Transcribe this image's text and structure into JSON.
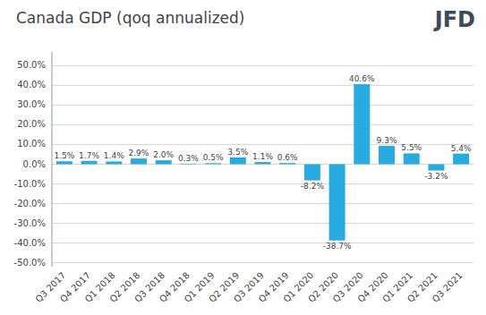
{
  "chart_data": {
    "type": "bar",
    "title": "Canada GDP (qoq annualized)",
    "annotations": [
      "JFD"
    ],
    "categories": [
      "Q3 2017",
      "Q4 2017",
      "Q1 2018",
      "Q2 2018",
      "Q3 2018",
      "Q4 2018",
      "Q1 2019",
      "Q2 2019",
      "Q3 2019",
      "Q4 2019",
      "Q1 2020",
      "Q2 2020",
      "Q3 2020",
      "Q4 2020",
      "Q1 2021",
      "Q2 2021",
      "Q3 2021"
    ],
    "values": [
      1.5,
      1.7,
      1.4,
      2.9,
      2.0,
      0.3,
      0.5,
      3.5,
      1.1,
      0.6,
      -8.2,
      -38.7,
      40.6,
      9.3,
      5.5,
      -3.2,
      5.4
    ],
    "value_labels": [
      "1.5%",
      "1.7%",
      "1.4%",
      "2.9%",
      "2.0%",
      "0.3%",
      "0.5%",
      "3.5%",
      "1.1%",
      "0.6%",
      "-8.2%",
      "-38.7%",
      "40.6%",
      "9.3%",
      "5.5%",
      "-3.2%",
      "5.4%"
    ],
    "color": "#29abe2",
    "ylim": [
      -52,
      57
    ],
    "yticks": [
      {
        "value": -50,
        "label": "-50.0%"
      },
      {
        "value": -40,
        "label": "-40.0%"
      },
      {
        "value": -30,
        "label": "-30.0%"
      },
      {
        "value": -20,
        "label": "-20.0%"
      },
      {
        "value": -10,
        "label": "-10.0%"
      },
      {
        "value": 0,
        "label": "0.0%"
      },
      {
        "value": 10,
        "label": "10.0%"
      },
      {
        "value": 20,
        "label": "20.0%"
      },
      {
        "value": 30,
        "label": "30.0%"
      },
      {
        "value": 40,
        "label": "40.0%"
      },
      {
        "value": 50,
        "label": "50.0%"
      }
    ],
    "grid": true,
    "data_labels": true
  }
}
